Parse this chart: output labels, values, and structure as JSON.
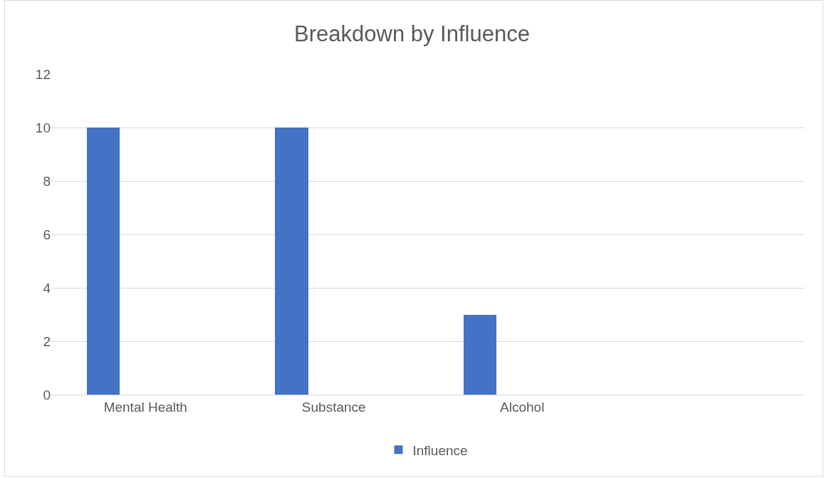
{
  "chart_data": {
    "type": "bar",
    "title": "Breakdown by Influence",
    "categories": [
      "Mental Health",
      "Substance",
      "Alcohol",
      null
    ],
    "series": [
      {
        "name": "Influence",
        "color": "#4472c4",
        "values": [
          10,
          10,
          3,
          null
        ]
      }
    ],
    "ylim": [
      0,
      12
    ],
    "yticks": [
      0,
      2,
      4,
      6,
      8,
      10,
      12
    ],
    "grid": "y",
    "legend": "bottom"
  }
}
